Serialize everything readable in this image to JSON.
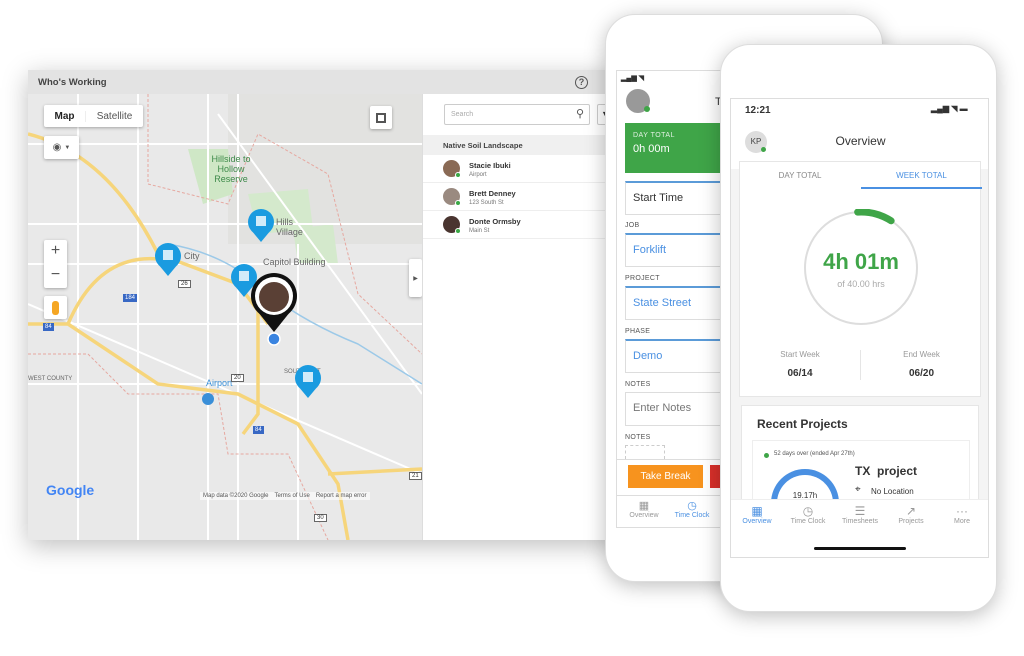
{
  "window": {
    "title": "Who's Working",
    "help_icon": "question-circle-icon"
  },
  "map": {
    "type_buttons": [
      "Map",
      "Satellite"
    ],
    "selected_type": "Map",
    "labels": {
      "reserve": "Hillside to Hollow Reserve",
      "hills": "Hills Village",
      "city": "City",
      "capitol": "Capitol Building",
      "airport": "Airport",
      "southeast": "SOUTHEAST",
      "west": "WEST COUNTY"
    },
    "route_shields": [
      "184",
      "26",
      "84",
      "20",
      "84",
      "30",
      "21"
    ],
    "google": "Google",
    "footer": {
      "data": "Map data ©2020 Google",
      "terms": "Terms of Use",
      "report": "Report a map error"
    },
    "colors": {
      "pin": "#1a9be0",
      "road": "#f6d57b"
    }
  },
  "panel": {
    "search_placeholder": "Search",
    "group": "Native Soil Landscape",
    "employees": [
      {
        "name": "Stacie Ibuki",
        "location": "Airport"
      },
      {
        "name": "Brett Denney",
        "location": "123 South St"
      },
      {
        "name": "Donte Ormsby",
        "location": "Main St"
      }
    ]
  },
  "phone1": {
    "title_partial": "T",
    "day_total_label": "DAY TOTAL",
    "day_total_value": "0h 00m",
    "start_time": "Start Time",
    "job_label": "JOB",
    "job": "Forklift",
    "project_label": "PROJECT",
    "project": "State Street",
    "phase_label": "PHASE",
    "phase": "Demo",
    "notes_label": "NOTES",
    "notes_placeholder": "Enter Notes",
    "notes2_label": "NOTES",
    "take_break": "Take Break",
    "nav": [
      "Overview",
      "Time Clock"
    ],
    "active_nav": "Time Clock",
    "colors": {
      "green": "#3fa548",
      "orange": "#f7931e",
      "red": "#d9302a",
      "blue": "#4a90e2"
    }
  },
  "phone2": {
    "time": "12:21",
    "avatar": "KP",
    "title": "Overview",
    "tabs": [
      "DAY TOTAL",
      "WEEK TOTAL"
    ],
    "active_tab": "WEEK TOTAL",
    "week_hours": "4h 01m",
    "week_of": "of 40.00 hrs",
    "progress_fraction": 0.1,
    "start_week_label": "Start Week",
    "start_week": "06/14",
    "end_week_label": "End Week",
    "end_week": "06/20",
    "recent_title": "Recent Projects",
    "project": {
      "status": "52 days over (ended Apr 27th)",
      "hours": "19.17h",
      "name": "TX  project",
      "location": "No Location"
    },
    "nav": [
      "Overview",
      "Time Clock",
      "Timesheets",
      "Projects",
      "More"
    ],
    "active_nav": "Overview"
  }
}
